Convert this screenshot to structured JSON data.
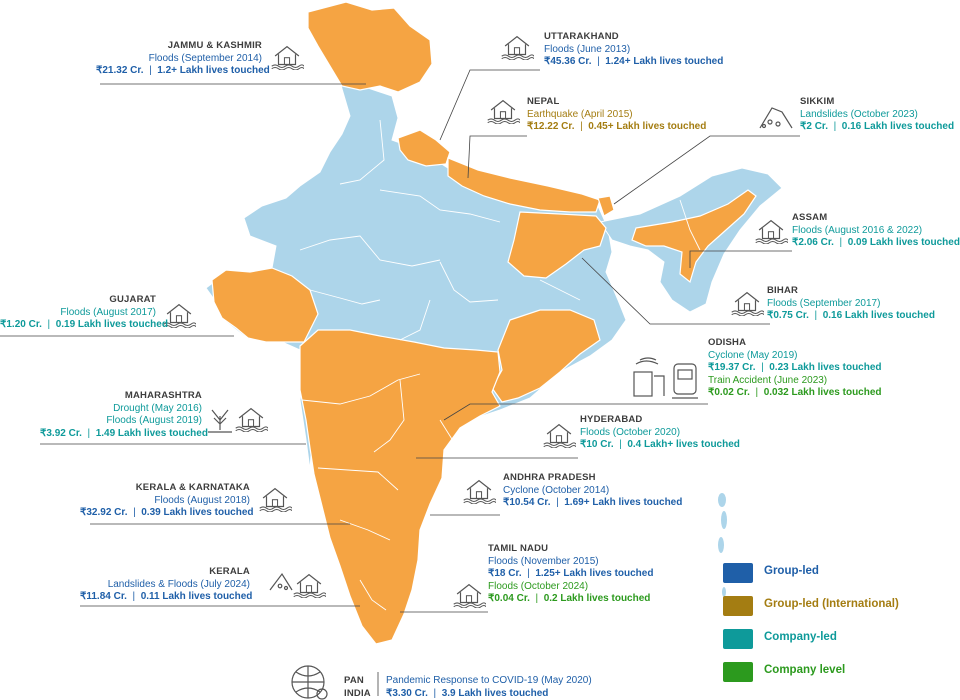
{
  "colors": {
    "group_led": "#1f5fa8",
    "group_led_international": "#a47d12",
    "company_led": "#0e9a9a",
    "company_level": "#2c9a1e",
    "highlight_state": "#f5a443",
    "base_state": "#add5ea"
  },
  "labels": {
    "jk": {
      "title": "JAMMU & KASHMIR",
      "event": "Floods (September 2014)",
      "amount": "₹21.32 Cr.",
      "sep": "|",
      "lives": "1.2+ Lakh lives touched"
    },
    "uttarakhand": {
      "title": "UTTARAKHAND",
      "event": "Floods (June 2013)",
      "amount": "₹45.36 Cr.",
      "sep": "|",
      "lives": "1.24+ Lakh lives touched"
    },
    "nepal": {
      "title": "NEPAL",
      "event": "Earthquake (April 2015)",
      "amount": "₹12.22 Cr.",
      "sep": "|",
      "lives": "0.45+ Lakh lives touched"
    },
    "sikkim": {
      "title": "SIKKIM",
      "event": "Landslides (October 2023)",
      "amount": "₹2 Cr.",
      "sep": "|",
      "lives": "0.16 Lakh lives touched"
    },
    "assam": {
      "title": "ASSAM",
      "event": "Floods (August 2016 & 2022)",
      "amount": "₹2.06 Cr.",
      "sep": "|",
      "lives": "0.09 Lakh lives touched"
    },
    "bihar": {
      "title": "BIHAR",
      "event": "Floods (September 2017)",
      "amount": "₹0.75 Cr.",
      "sep": "|",
      "lives": "0.16 Lakh lives touched"
    },
    "gujarat": {
      "title": "GUJARAT",
      "event": "Floods (August 2017)",
      "amount": "₹1.20 Cr.",
      "sep": "|",
      "lives": "0.19 Lakh lives touched"
    },
    "odisha": {
      "title": "ODISHA",
      "event1": "Cyclone (May 2019)",
      "amount1": "₹19.37 Cr.",
      "sep": "|",
      "lives1": "0.23 Lakh lives touched",
      "event2": "Train Accident (June 2023)",
      "amount2": "₹0.02 Cr.",
      "lives2": "0.032 Lakh lives touched"
    },
    "maharashtra": {
      "title": "MAHARASHTRA",
      "event1": "Drought (May 2016)",
      "event2": "Floods (August 2019)",
      "amount": "₹3.92 Cr.",
      "sep": "|",
      "lives": "1.49 Lakh lives touched"
    },
    "hyderabad": {
      "title": "HYDERABAD",
      "event": "Floods (October 2020)",
      "amount": "₹10 Cr.",
      "sep": "|",
      "lives": "0.4  Lakh+ lives touched"
    },
    "kerala_karnataka": {
      "title": "KERALA & KARNATAKA",
      "event": "Floods (August 2018)",
      "amount": "₹32.92 Cr.",
      "sep": "|",
      "lives": "0.39 Lakh lives touched"
    },
    "andhra": {
      "title": "ANDHRA PRADESH",
      "event": "Cyclone (October 2014)",
      "amount": "₹10.54 Cr.",
      "sep": "|",
      "lives": "1.69+ Lakh lives touched"
    },
    "tamilnadu": {
      "title": "TAMIL NADU",
      "event1": "Floods (November 2015)",
      "amount1": "₹18 Cr.",
      "sep": "|",
      "lives1": "1.25+ Lakh lives touched",
      "event2": "Floods (October 2024)",
      "amount2": "₹0.04 Cr.",
      "lives2": "0.2 Lakh lives touched"
    },
    "kerala": {
      "title": "KERALA",
      "event": "Landslides & Floods (July 2024)",
      "amount": "₹11.84 Cr.",
      "sep": "|",
      "lives": "0.11 Lakh lives touched"
    },
    "pan": {
      "title1": "PAN",
      "title2": "INDIA",
      "event": "Pandemic Response to COVID-19 (May 2020)",
      "amount": "₹3.30 Cr.",
      "sep": "|",
      "lives": "3.9 Lakh lives touched"
    }
  },
  "legend": [
    {
      "label": "Group-led",
      "color": "#1f5fa8"
    },
    {
      "label": "Group-led (International)",
      "color": "#a47d12"
    },
    {
      "label": "Company-led",
      "color": "#0e9a9a"
    },
    {
      "label": "Company level",
      "color": "#2c9a1e"
    }
  ],
  "icons": {
    "flood": "flood-house-icon",
    "earthquake": "earthquake-house-icon",
    "landslide": "landslide-icon",
    "drought": "drought-tree-icon",
    "cyclone": "cyclone-icon",
    "train": "train-icon",
    "globe": "globe-virus-icon"
  }
}
